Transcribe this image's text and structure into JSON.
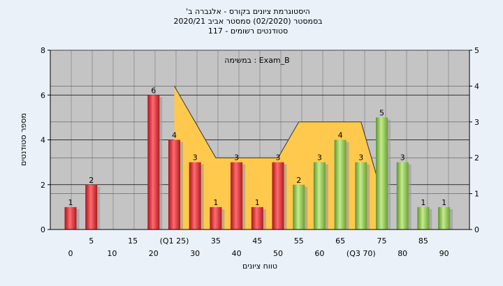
{
  "chart_data": {
    "type": "bar",
    "title_lines": [
      "'היסטוגרמת ציונים בקורס - אלגברה ב",
      "בסמסטר  (02/2020)  סמסטר אביב 2020/21",
      "סטודנטים רשומים - 117"
    ],
    "annotation": "במשימה : Exam_B",
    "xlabel": "טווח ציונים",
    "ylabel": "מספר סטודנטים",
    "ylim": [
      0,
      8
    ],
    "y2lim": [
      0,
      5
    ],
    "yticks": [
      0,
      2,
      4,
      6,
      8
    ],
    "y2ticks": [
      0,
      1,
      2,
      3,
      4,
      5
    ],
    "grid": true,
    "categories": [
      0,
      5,
      10,
      15,
      20,
      25,
      30,
      35,
      40,
      45,
      50,
      55,
      60,
      65,
      70,
      75,
      80,
      85,
      90
    ],
    "values": [
      1,
      2,
      0,
      0,
      6,
      4,
      3,
      1,
      3,
      1,
      3,
      2,
      3,
      4,
      3,
      5,
      3,
      1,
      1
    ],
    "bar_colors": [
      "red",
      "red",
      "red",
      "red",
      "red",
      "red",
      "red",
      "red",
      "red",
      "red",
      "red",
      "green",
      "green",
      "green",
      "green",
      "green",
      "green",
      "green",
      "green"
    ],
    "tick_labels_upper": [
      "5",
      "15",
      "(Q1 25)",
      "35",
      "45",
      "55",
      "65",
      "75",
      "85"
    ],
    "tick_labels_lower": [
      "0",
      "10",
      "20",
      "30",
      "40",
      "50",
      "60",
      "(Q3 70)",
      "80",
      "90"
    ],
    "box_shape_y2": [
      {
        "x": 25,
        "y": 4
      },
      {
        "x": 30,
        "y": 3
      },
      {
        "x": 35,
        "y": 2
      },
      {
        "x": 50,
        "y": 2
      },
      {
        "x": 55,
        "y": 3
      },
      {
        "x": 70,
        "y": 3
      },
      {
        "x": 75,
        "y": 1
      }
    ],
    "colors": {
      "plot_bg": "#c4c4c4",
      "page_bg": "#eaf1f8",
      "red": "#e8383d",
      "green": "#96c957",
      "box": "#ffc94d"
    }
  }
}
